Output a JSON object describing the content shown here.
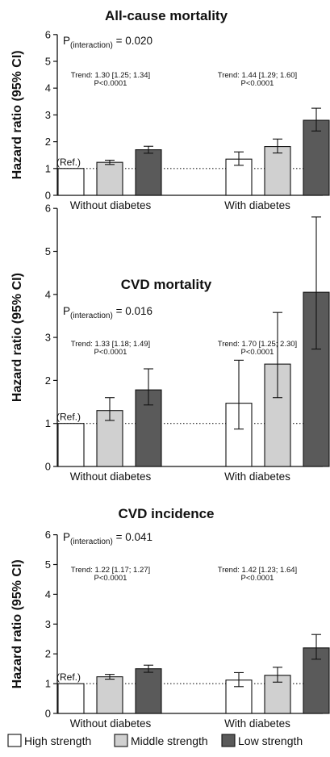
{
  "chart_data": [
    {
      "type": "bar",
      "title": "All-cause mortality",
      "ylabel": "Hazard ratio (95% CI)",
      "ylim": [
        0,
        6
      ],
      "yticks": [
        "0",
        "1",
        "2",
        "3",
        "4",
        "5",
        "6"
      ],
      "categories": [
        "Without diabetes",
        "With diabetes"
      ],
      "p_interaction": {
        "prefix": "P",
        "subscript": "(interaction)",
        "value": " = 0.020"
      },
      "trends": [
        {
          "text": "Trend: 1.30 [1.25; 1.34]",
          "p": "P<0.0001"
        },
        {
          "text": "Trend: 1.44 [1.29; 1.60]",
          "p": "P<0.0001"
        }
      ],
      "ref_label": "(Ref.)",
      "series": [
        {
          "name": "High strength",
          "values": [
            1.0,
            1.35
          ],
          "lo": [
            1.0,
            1.12
          ],
          "hi": [
            1.0,
            1.62
          ]
        },
        {
          "name": "Middle strength",
          "values": [
            1.23,
            1.82
          ],
          "lo": [
            1.15,
            1.58
          ],
          "hi": [
            1.31,
            2.1
          ]
        },
        {
          "name": "Low strength",
          "values": [
            1.7,
            2.8
          ],
          "lo": [
            1.57,
            2.4
          ],
          "hi": [
            1.83,
            3.25
          ]
        }
      ]
    },
    {
      "type": "bar",
      "title": "CVD mortality",
      "ylabel": "Hazard ratio (95% CI)",
      "ylim": [
        0,
        6
      ],
      "yticks": [
        "0",
        "1",
        "2",
        "3",
        "4",
        "5",
        "6"
      ],
      "categories": [
        "Without diabetes",
        "With diabetes"
      ],
      "p_interaction": {
        "prefix": "P",
        "subscript": "(interaction)",
        "value": " = 0.016"
      },
      "trends": [
        {
          "text": "Trend: 1.33 [1.18; 1.49]",
          "p": "P<0.0001"
        },
        {
          "text": "Trend: 1.70 [1.25; 2.30]",
          "p": "P<0.0001"
        }
      ],
      "ref_label": "(Ref.)",
      "series": [
        {
          "name": "High strength",
          "values": [
            1.0,
            1.47
          ],
          "lo": [
            1.0,
            0.87
          ],
          "hi": [
            1.0,
            2.47
          ]
        },
        {
          "name": "Middle strength",
          "values": [
            1.3,
            2.38
          ],
          "lo": [
            1.07,
            1.6
          ],
          "hi": [
            1.6,
            3.58
          ]
        },
        {
          "name": "Low strength",
          "values": [
            1.78,
            4.05
          ],
          "lo": [
            1.43,
            2.73
          ],
          "hi": [
            2.27,
            5.8
          ]
        }
      ]
    },
    {
      "type": "bar",
      "title": "CVD incidence",
      "ylabel": "Hazard ratio (95% CI)",
      "ylim": [
        0,
        6
      ],
      "yticks": [
        "0",
        "1",
        "2",
        "3",
        "4",
        "5",
        "6"
      ],
      "categories": [
        "Without diabetes",
        "With diabetes"
      ],
      "p_interaction": {
        "prefix": "P",
        "subscript": "(interaction)",
        "value": " = 0.041"
      },
      "trends": [
        {
          "text": "Trend: 1.22 [1.17; 1.27]",
          "p": "P<0.0001"
        },
        {
          "text": "Trend: 1.42 [1.23; 1.64]",
          "p": "P<0.0001"
        }
      ],
      "ref_label": "(Ref.)",
      "series": [
        {
          "name": "High strength",
          "values": [
            1.0,
            1.12
          ],
          "lo": [
            1.0,
            0.9
          ],
          "hi": [
            1.0,
            1.37
          ]
        },
        {
          "name": "Middle strength",
          "values": [
            1.23,
            1.28
          ],
          "lo": [
            1.15,
            1.05
          ],
          "hi": [
            1.31,
            1.55
          ]
        },
        {
          "name": "Low strength",
          "values": [
            1.5,
            2.2
          ],
          "lo": [
            1.38,
            1.82
          ],
          "hi": [
            1.62,
            2.65
          ]
        }
      ]
    }
  ],
  "legend": {
    "items": [
      {
        "label": "High strength",
        "color": "#ffffff"
      },
      {
        "label": "Middle strength",
        "color": "#d0d0d0"
      },
      {
        "label": "Low strength",
        "color": "#5a5a5a"
      }
    ]
  }
}
